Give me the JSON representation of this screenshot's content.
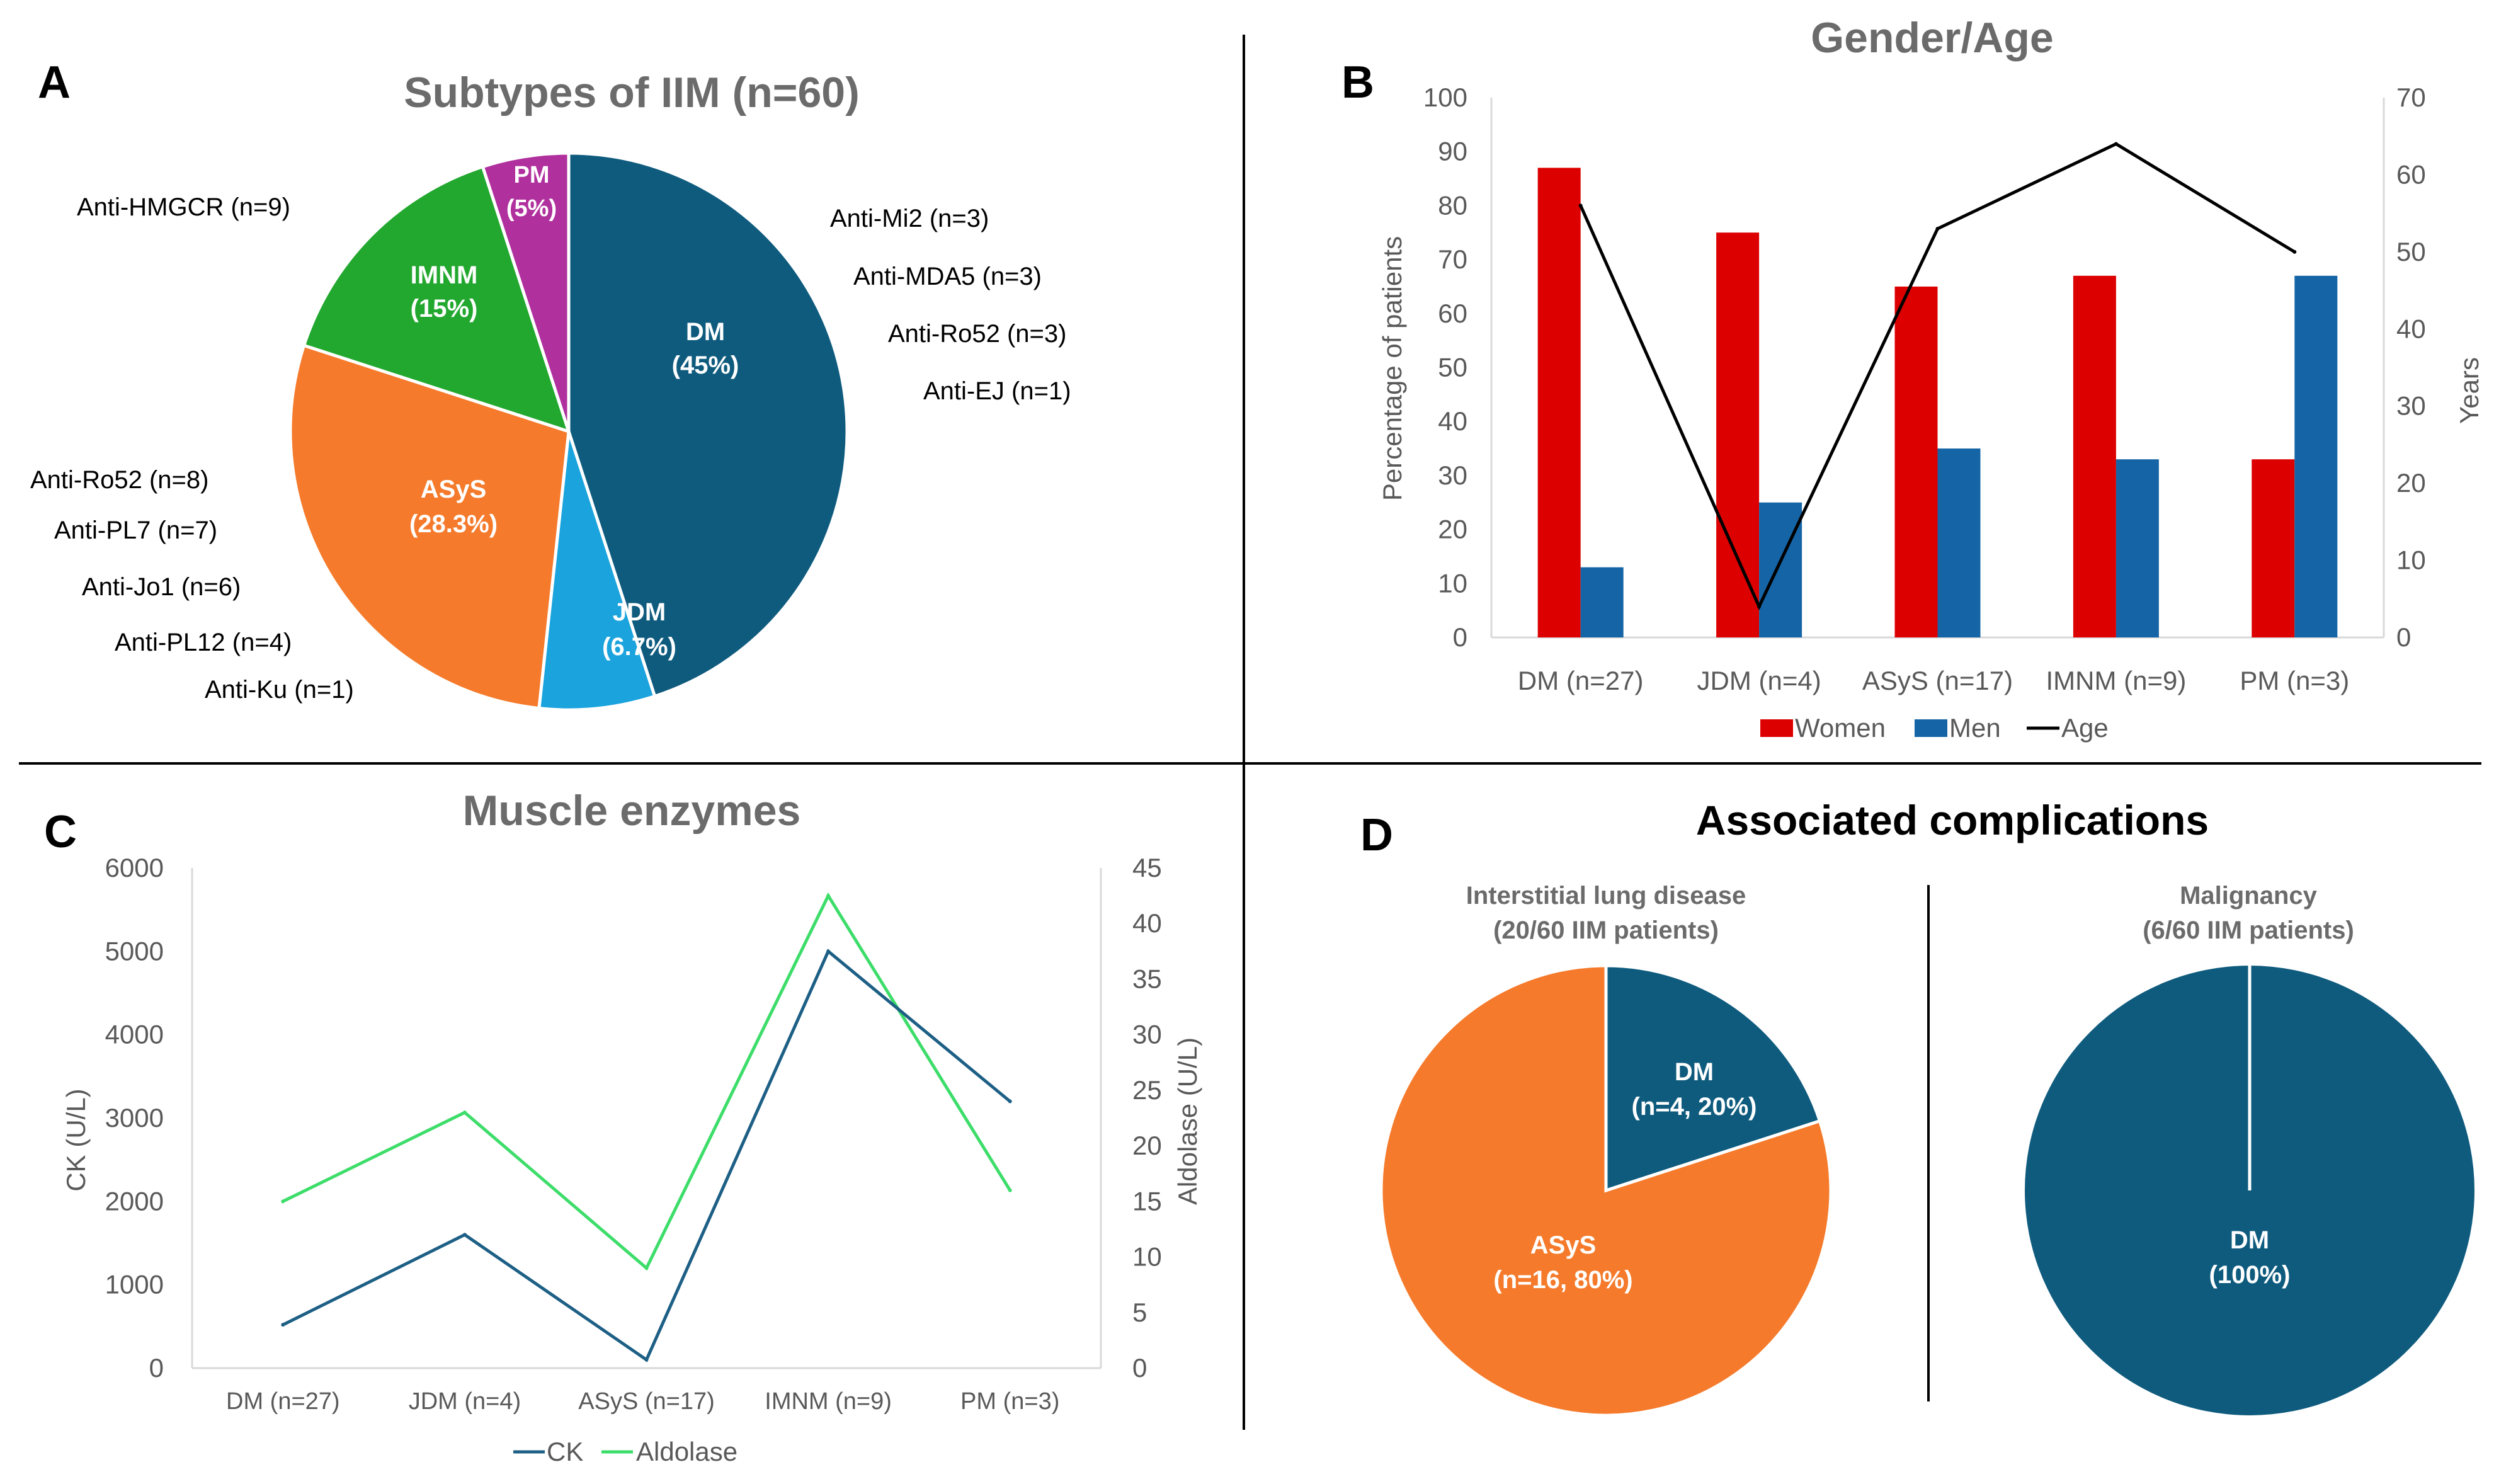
{
  "panels": {
    "A": "A",
    "B": "B",
    "C": "C",
    "D": "D"
  },
  "colors": {
    "dm": "#0f5b7e",
    "jdm": "#1aa3dd",
    "asys": "#f57a2b",
    "imnm": "#22a82f",
    "pm": "#b0309e",
    "women": "#dd0000",
    "men": "#1565a6",
    "age": "#000000",
    "ck": "#1d5f85",
    "aldolase": "#3ddd6a",
    "title_gray": "#6b6b6b",
    "axis_text": "#595959"
  },
  "chart_data": [
    {
      "id": "A",
      "type": "pie",
      "title": "Subtypes of IIM (n=60)",
      "slices": [
        {
          "key": "dm",
          "name": "DM",
          "percent_label": "(45%)",
          "value": 45
        },
        {
          "key": "jdm",
          "name": "JDM",
          "percent_label": "(6.7%)",
          "value": 6.7
        },
        {
          "key": "asys",
          "name": "ASyS",
          "percent_label": "(28.3%)",
          "value": 28.3
        },
        {
          "key": "imnm",
          "name": "IMNM",
          "percent_label": "(15%)",
          "value": 15
        },
        {
          "key": "pm",
          "name": "PM",
          "percent_label": "(5%)",
          "value": 5
        }
      ],
      "annotations": {
        "dm": [
          "Anti-Mi2 (n=3)",
          "Anti-MDA5 (n=3)",
          "Anti-Ro52 (n=3)",
          "Anti-EJ (n=1)"
        ],
        "asys": [
          "Anti-Ro52 (n=8)",
          "Anti-PL7 (n=7)",
          "Anti-Jo1 (n=6)",
          "Anti-PL12 (n=4)",
          "Anti-Ku (n=1)"
        ],
        "imnm": [
          "Anti-HMGCR (n=9)"
        ]
      }
    },
    {
      "id": "B",
      "type": "bar",
      "title": "Gender/Age",
      "categories": [
        "DM (n=27)",
        "JDM (n=4)",
        "ASyS (n=17)",
        "IMNM (n=9)",
        "PM (n=3)"
      ],
      "series": [
        {
          "name": "Women",
          "values": [
            87,
            75,
            65,
            67,
            33
          ],
          "axis": "left"
        },
        {
          "name": "Men",
          "values": [
            13,
            25,
            35,
            33,
            67
          ],
          "axis": "left"
        },
        {
          "name": "Age",
          "type": "line",
          "values": [
            56,
            4,
            53,
            64,
            50
          ],
          "axis": "right"
        }
      ],
      "ylabel": "Percentage of patients",
      "ylim": [
        0,
        100
      ],
      "yticks": [
        "0",
        "10",
        "20",
        "30",
        "40",
        "50",
        "60",
        "70",
        "80",
        "90",
        "100"
      ],
      "y2label": "Years",
      "y2lim": [
        0,
        70
      ],
      "y2ticks": [
        "0",
        "10",
        "20",
        "30",
        "40",
        "50",
        "60",
        "70"
      ],
      "legend": [
        "Women",
        "Men",
        "Age"
      ]
    },
    {
      "id": "C",
      "type": "line",
      "title": "Muscle enzymes",
      "categories": [
        "DM (n=27)",
        "JDM (n=4)",
        "ASyS (n=17)",
        "IMNM (n=9)",
        "PM (n=3)"
      ],
      "series": [
        {
          "name": "CK",
          "values": [
            520,
            1600,
            100,
            5000,
            3200
          ],
          "axis": "left"
        },
        {
          "name": "Aldolase",
          "values": [
            15,
            23,
            9,
            42.5,
            16
          ],
          "axis": "right"
        }
      ],
      "ylabel": "CK (U/L)",
      "ylim": [
        0,
        6000
      ],
      "yticks": [
        "0",
        "1000",
        "2000",
        "3000",
        "4000",
        "5000",
        "6000"
      ],
      "y2label": "Aldolase (U/L)",
      "y2lim": [
        0,
        45
      ],
      "y2ticks": [
        "0",
        "5",
        "10",
        "15",
        "20",
        "25",
        "30",
        "35",
        "40",
        "45"
      ],
      "legend": [
        "CK",
        "Aldolase"
      ]
    },
    {
      "id": "D",
      "type": "pie",
      "title": "Associated complications",
      "pies": [
        {
          "title_lines": [
            "Interstitial lung disease",
            "(20/60 IIM patients)"
          ],
          "slices": [
            {
              "key": "dm",
              "name": "DM",
              "detail": "(n=4, 20%)",
              "value": 20
            },
            {
              "key": "asys",
              "name": "ASyS",
              "detail": "(n=16, 80%)",
              "value": 80
            }
          ]
        },
        {
          "title_lines": [
            "Malignancy",
            "(6/60 IIM patients)"
          ],
          "slices": [
            {
              "key": "dm",
              "name": "DM",
              "detail": "(100%)",
              "value": 100
            }
          ]
        }
      ]
    }
  ]
}
